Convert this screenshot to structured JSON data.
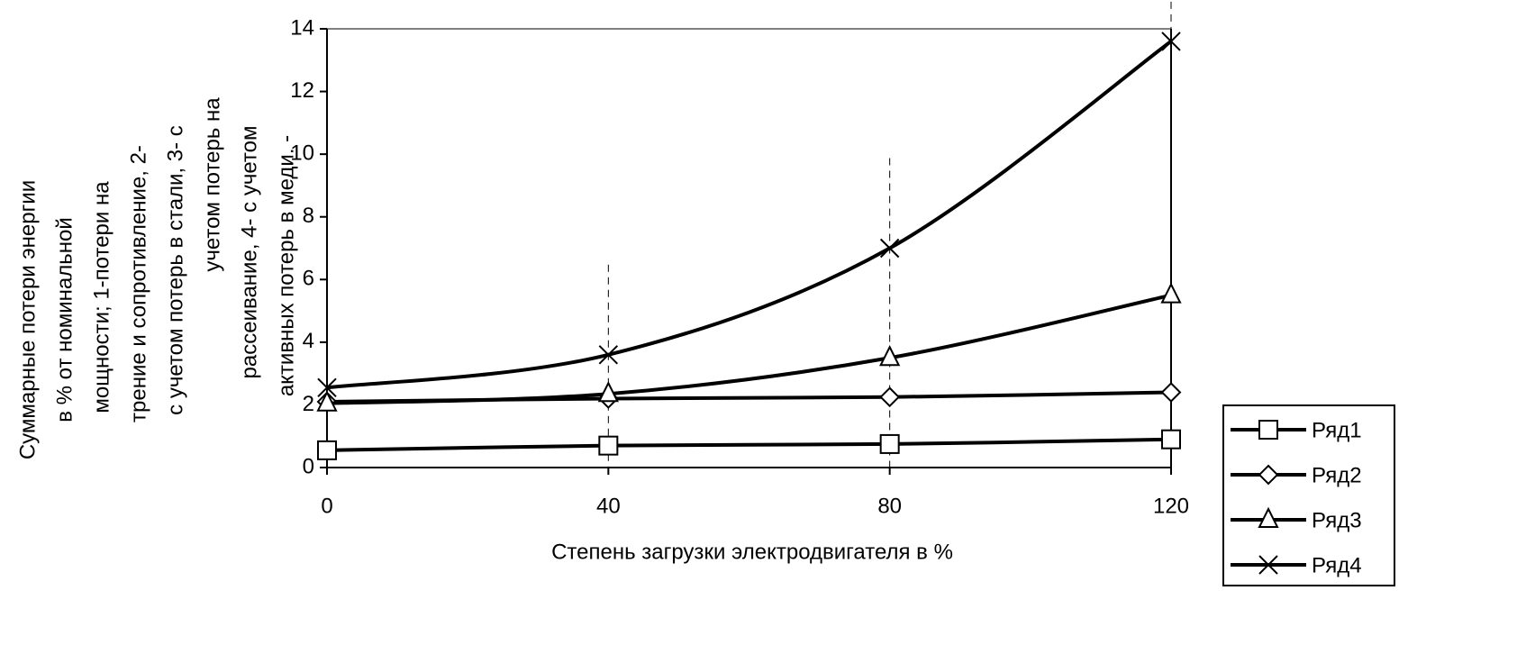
{
  "chart_data": {
    "type": "line",
    "ylabel": [
      "Суммарные потери энергии",
      "в % от номинальной",
      "мощности; 1-потери на",
      "трение и сопротивление,  2-",
      "с учетом потерь в стали, 3- с",
      "учетом потерь на",
      "рассеивание, 4- с учетом",
      "активных потерь в меди. -"
    ],
    "xlabel": "Степень загрузки электродвигателя в %",
    "x": [
      0,
      40,
      80,
      120
    ],
    "xlim": [
      0,
      120
    ],
    "xticks": [
      0,
      40,
      80,
      120
    ],
    "ylim": [
      0,
      14
    ],
    "yticks": [
      0,
      2,
      4,
      6,
      8,
      10,
      12,
      14
    ],
    "legend": "bottom-right",
    "series": [
      {
        "name": "Ряд1",
        "color": "#000000",
        "marker": "square",
        "values": [
          0.55,
          0.7,
          0.75,
          0.9
        ]
      },
      {
        "name": "Ряд2",
        "color": "#000000",
        "marker": "diamond",
        "values": [
          2.1,
          2.2,
          2.25,
          2.4
        ]
      },
      {
        "name": "Ряд3",
        "color": "#000000",
        "marker": "triangle",
        "values": [
          2.05,
          2.35,
          3.5,
          5.5
        ]
      },
      {
        "name": "Ряд4",
        "color": "#000000",
        "marker": "x",
        "values": [
          2.55,
          3.6,
          7.0,
          13.6
        ]
      }
    ]
  }
}
